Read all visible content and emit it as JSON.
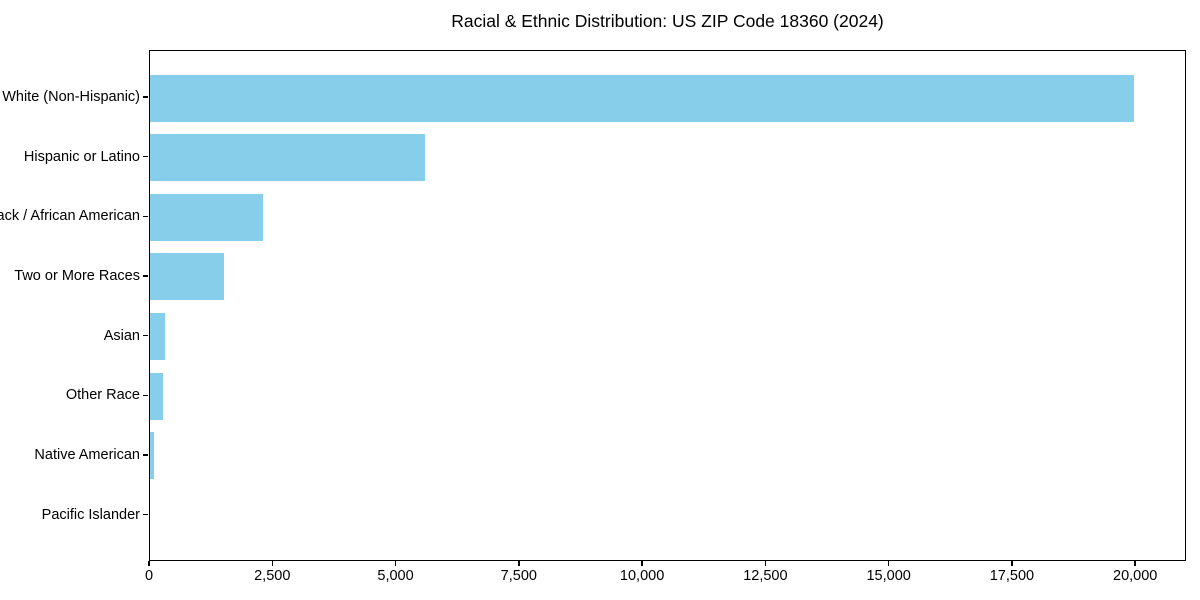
{
  "title": "Racial & Ethnic Distribution: US ZIP Code 18360 (2024)",
  "chart_data": {
    "type": "bar",
    "orientation": "horizontal",
    "title": "Racial & Ethnic Distribution: US ZIP Code 18360 (2024)",
    "xlabel": "",
    "ylabel": "",
    "categories": [
      "White (Non-Hispanic)",
      "Hispanic or Latino",
      "Black / African American",
      "Two or More Races",
      "Asian",
      "Other Race",
      "Native American",
      "Pacific Islander"
    ],
    "values": [
      20000,
      5580,
      2300,
      1500,
      310,
      270,
      85,
      0
    ],
    "x_ticks": [
      0,
      2500,
      5000,
      7500,
      10000,
      12500,
      15000,
      17500,
      20000
    ],
    "x_tick_labels": [
      "0",
      "2,500",
      "5,000",
      "7,500",
      "10,000",
      "12,500",
      "15,000",
      "17,500",
      "20,000"
    ],
    "xlim": [
      0,
      21030
    ],
    "grid": false,
    "legend": false,
    "bar_color": "#87CEEB",
    "spine_color": "#000000",
    "text_color": "#000000",
    "background_color": "#ffffff"
  }
}
